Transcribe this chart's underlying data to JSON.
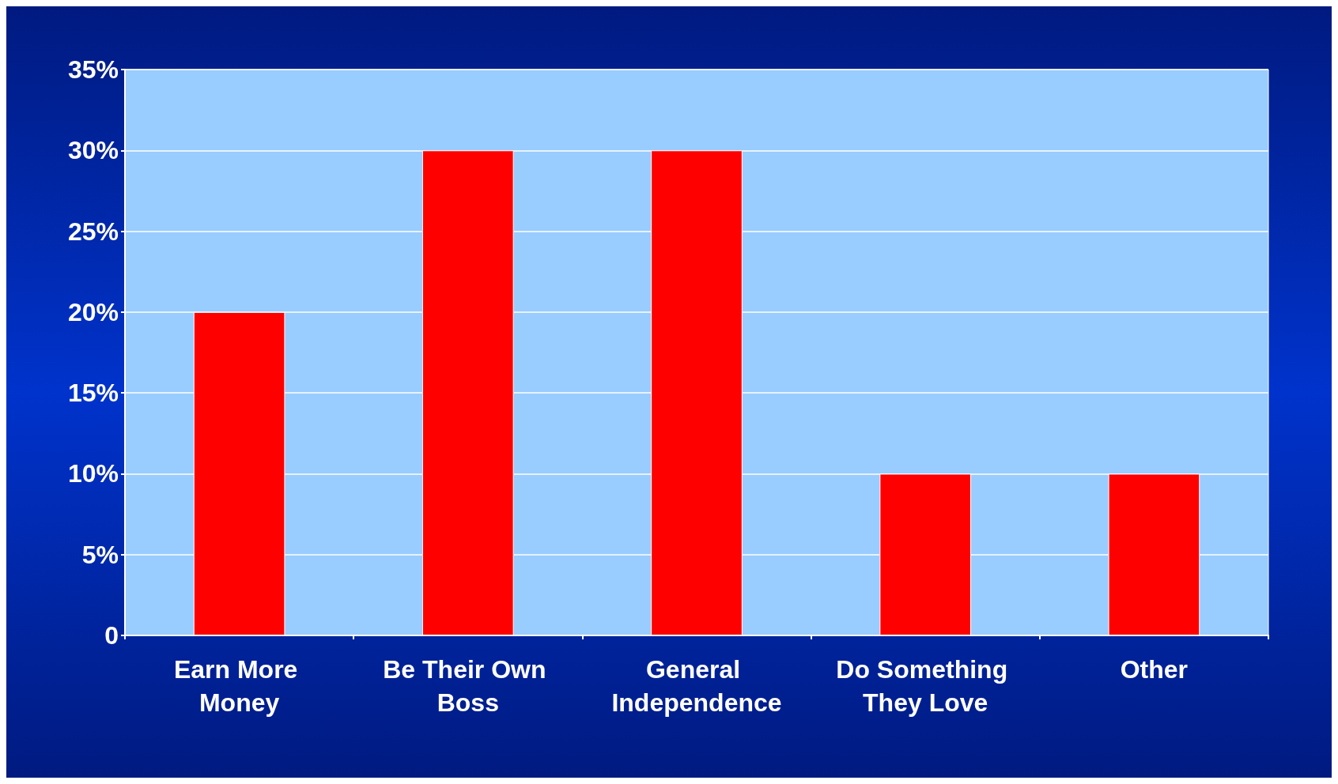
{
  "chart_data": {
    "type": "bar",
    "categories": [
      "Earn More Money",
      "Be Their Own Boss",
      "General Independence",
      "Do Something They Love",
      "Other"
    ],
    "values": [
      20,
      30,
      30,
      10,
      10
    ],
    "color": "#ff0000",
    "ylim": [
      0,
      35
    ],
    "yticks": [
      {
        "value": 0,
        "label": "0"
      },
      {
        "value": 5,
        "label": "5%"
      },
      {
        "value": 10,
        "label": "10%"
      },
      {
        "value": 15,
        "label": "15%"
      },
      {
        "value": 20,
        "label": "20%"
      },
      {
        "value": 25,
        "label": "25%"
      },
      {
        "value": 30,
        "label": "30%"
      },
      {
        "value": 35,
        "label": "35%"
      }
    ],
    "grid": "y"
  }
}
